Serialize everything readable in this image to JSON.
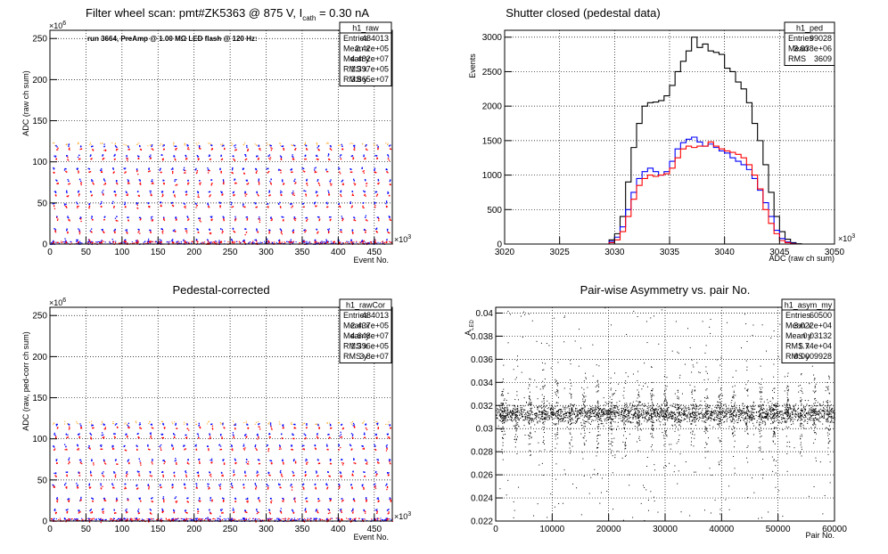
{
  "chart_data": [
    {
      "type": "scatter",
      "title": "Filter wheel scan: pmt#ZK5363 @   875 V, I",
      "title_sub": "cath",
      "title_tail": " = 0.30 nA",
      "annotation": "run 3664, PreAmp @ 1.00 MΩ LED flash @  120 Hz:",
      "xlabel": "Event No.",
      "ylabel": "ADC (raw ch sum)",
      "x_multiplier": "×10",
      "x_multiplier_exp": "3",
      "y_multiplier": "×10",
      "y_multiplier_exp": "6",
      "xlim": [
        0,
        475
      ],
      "ylim": [
        0,
        260
      ],
      "xticks": [
        "0",
        "50",
        "100",
        "150",
        "200",
        "250",
        "300",
        "350",
        "400",
        "450"
      ],
      "yticks": [
        "0",
        "50",
        "100",
        "150",
        "200",
        "250"
      ],
      "levels_blue": [
        5,
        18,
        33,
        50,
        64,
        78,
        92,
        108,
        120
      ],
      "levels_red": [
        3,
        15,
        30,
        46,
        60,
        74,
        88,
        104,
        116
      ],
      "stats": {
        "name": "h1_raw",
        "rows": [
          {
            "label": "Entries",
            "value": "484013"
          },
          {
            "label": "Mean x",
            "value": "2.42e+05"
          },
          {
            "label": "Mean y",
            "value": "4.482e+07"
          },
          {
            "label": "RMS x",
            "value": "1.397e+05"
          },
          {
            "label": "RMS y",
            "value": "3.865e+07"
          }
        ]
      }
    },
    {
      "type": "line",
      "title": "Shutter closed (pedestal data)",
      "xlabel": "ADC (raw ch sum)",
      "ylabel": "Events",
      "x_multiplier": "×10",
      "x_multiplier_exp": "3",
      "xlim": [
        3020,
        3050
      ],
      "ylim": [
        0,
        3100
      ],
      "xticks": [
        "3020",
        "3025",
        "3030",
        "3035",
        "3040",
        "3045",
        "3050"
      ],
      "yticks": [
        "0",
        "500",
        "1000",
        "1500",
        "2000",
        "2500",
        "3000"
      ],
      "series": [
        {
          "color": "#000000",
          "x": [
            3029,
            3029.5,
            3030,
            3030.5,
            3031,
            3031.5,
            3032,
            3032.5,
            3033,
            3033.5,
            3034,
            3034.5,
            3035,
            3035.5,
            3036,
            3036.5,
            3037,
            3037.5,
            3038,
            3038.5,
            3039,
            3039.5,
            3040,
            3040.5,
            3041,
            3041.5,
            3042,
            3042.5,
            3043,
            3043.5,
            3044,
            3044.5,
            3045,
            3045.5,
            3046,
            3046.5,
            3047
          ],
          "y": [
            0,
            60,
            150,
            400,
            900,
            1400,
            1750,
            2000,
            2050,
            2060,
            2080,
            2150,
            2300,
            2500,
            2650,
            2800,
            3000,
            2850,
            2900,
            2800,
            2780,
            2750,
            2550,
            2500,
            2350,
            2250,
            2050,
            1750,
            1500,
            1150,
            750,
            400,
            180,
            70,
            20,
            5,
            0
          ]
        },
        {
          "color": "#0000ff",
          "x": [
            3029,
            3029.5,
            3030,
            3030.5,
            3031,
            3031.5,
            3032,
            3032.5,
            3033,
            3033.5,
            3034,
            3034.5,
            3035,
            3035.5,
            3036,
            3036.5,
            3037,
            3037.5,
            3038,
            3038.5,
            3039,
            3039.5,
            3040,
            3040.5,
            3041,
            3041.5,
            3042,
            3042.5,
            3043,
            3043.5,
            3044,
            3044.5,
            3045,
            3045.5,
            3046,
            3046.5,
            3047
          ],
          "y": [
            0,
            40,
            100,
            250,
            500,
            750,
            950,
            1050,
            1100,
            1050,
            1000,
            1050,
            1200,
            1380,
            1470,
            1520,
            1550,
            1480,
            1420,
            1450,
            1400,
            1350,
            1320,
            1250,
            1200,
            1150,
            1080,
            950,
            780,
            600,
            400,
            200,
            80,
            30,
            10,
            0,
            0
          ]
        },
        {
          "color": "#ff0000",
          "x": [
            3029,
            3029.5,
            3030,
            3030.5,
            3031,
            3031.5,
            3032,
            3032.5,
            3033,
            3033.5,
            3034,
            3034.5,
            3035,
            3035.5,
            3036,
            3036.5,
            3037,
            3037.5,
            3038,
            3038.5,
            3039,
            3039.5,
            3040,
            3040.5,
            3041,
            3041.5,
            3042,
            3042.5,
            3043,
            3043.5,
            3044,
            3044.5,
            3045,
            3045.5,
            3046,
            3046.5,
            3047
          ],
          "y": [
            0,
            20,
            60,
            180,
            400,
            650,
            850,
            950,
            1000,
            980,
            1000,
            1020,
            1100,
            1250,
            1380,
            1420,
            1400,
            1420,
            1420,
            1480,
            1420,
            1380,
            1350,
            1330,
            1300,
            1250,
            1150,
            1000,
            800,
            500,
            300,
            150,
            50,
            20,
            5,
            0,
            0
          ]
        }
      ],
      "stats": {
        "name": "h1_ped",
        "rows": [
          {
            "label": "Entries",
            "value": "99028"
          },
          {
            "label": "Mean",
            "value": "3.038e+06"
          },
          {
            "label": "RMS",
            "value": "3609"
          }
        ]
      }
    },
    {
      "type": "scatter",
      "title": "Pedestal-corrected",
      "xlabel": "Event No.",
      "ylabel": "ADC (raw, ped-corr ch sum)",
      "x_multiplier": "×10",
      "x_multiplier_exp": "3",
      "y_multiplier": "×10",
      "y_multiplier_exp": "6",
      "xlim": [
        0,
        475
      ],
      "ylim": [
        0,
        260
      ],
      "xticks": [
        "0",
        "50",
        "100",
        "150",
        "200",
        "250",
        "300",
        "350",
        "400",
        "450"
      ],
      "yticks": [
        "0",
        "50",
        "100",
        "150",
        "200",
        "250"
      ],
      "levels_blue": [
        3,
        14,
        28,
        45,
        60,
        75,
        92,
        106,
        118
      ],
      "levels_red": [
        1,
        11,
        25,
        41,
        56,
        71,
        88,
        102,
        114
      ],
      "stats": {
        "name": "h1_rawCor",
        "rows": [
          {
            "label": "Entries",
            "value": "484013"
          },
          {
            "label": "Mean x",
            "value": "2.437e+05"
          },
          {
            "label": "Mean y",
            "value": "4.648e+07"
          },
          {
            "label": "RMS x",
            "value": "1.396e+05"
          },
          {
            "label": "RMS y",
            "value": "3.8e+07"
          }
        ]
      }
    },
    {
      "type": "scatter",
      "title": "Pair-wise Asymmetry vs. pair No.",
      "xlabel": "Pair No.",
      "ylabel": "A",
      "ylabel_sub": "LED",
      "xlim": [
        0,
        60000
      ],
      "ylim": [
        0.022,
        0.0405
      ],
      "xticks": [
        "0",
        "10000",
        "20000",
        "30000",
        "40000",
        "50000",
        "60000"
      ],
      "yticks": [
        "0.022",
        "0.024",
        "0.026",
        "0.028",
        "0.03",
        "0.032",
        "0.034",
        "0.036",
        "0.038",
        "0.04"
      ],
      "band_center": 0.0313,
      "spike_count": 25,
      "stats": {
        "name": "h1_asym_my",
        "rows": [
          {
            "label": "Entries",
            "value": "60500"
          },
          {
            "label": "Mean x",
            "value": "3.022e+04"
          },
          {
            "label": "Mean y",
            "value": "0.03132"
          },
          {
            "label": "RMS x",
            "value": "1.74e+04"
          },
          {
            "label": "RMS y",
            "value": "0.0009928"
          }
        ]
      }
    }
  ]
}
